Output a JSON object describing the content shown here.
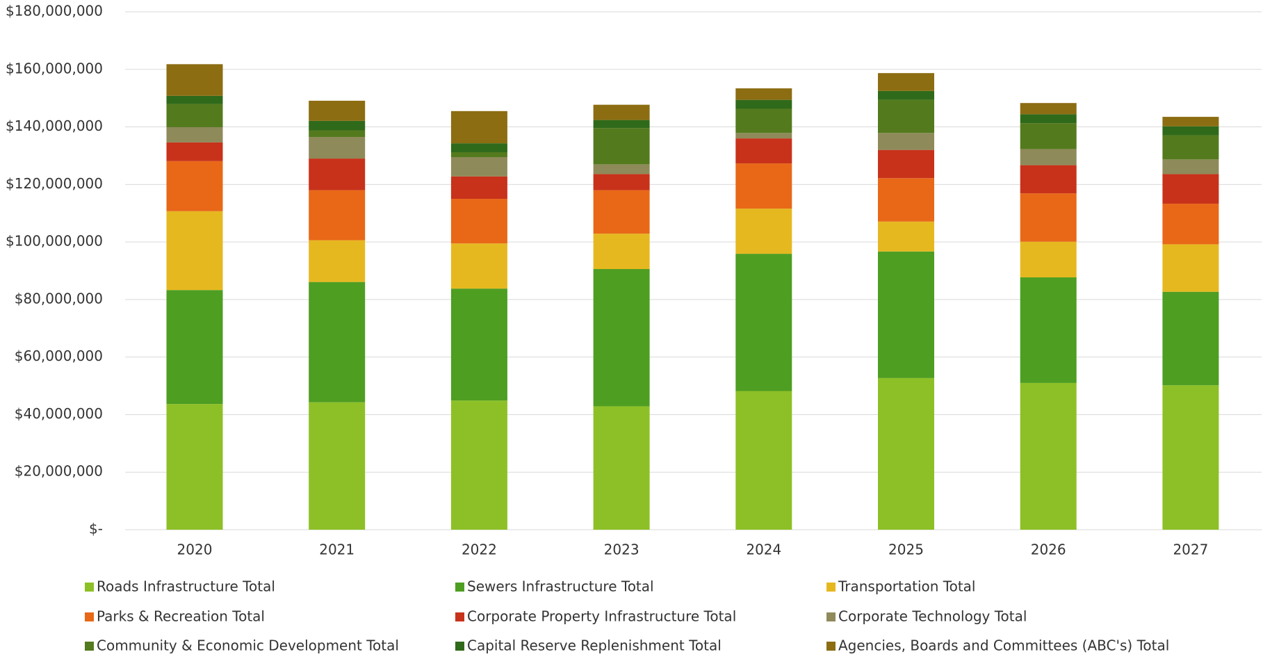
{
  "chart_data": {
    "type": "stacked_bar",
    "categories": [
      "2020",
      "2021",
      "2022",
      "2023",
      "2024",
      "2025",
      "2026",
      "2027"
    ],
    "series": [
      {
        "name": "Roads Infrastructure Total",
        "color": "#8dc026",
        "values": [
          43700000,
          44300000,
          44900000,
          42900000,
          48200000,
          52700000,
          51000000,
          50200000
        ]
      },
      {
        "name": "Sewers Infrastructure Total",
        "color": "#4e9e22",
        "values": [
          39600000,
          41800000,
          38900000,
          47700000,
          47700000,
          44000000,
          36700000,
          32500000
        ]
      },
      {
        "name": "Transportation Total",
        "color": "#e6b820",
        "values": [
          27400000,
          14500000,
          15700000,
          12300000,
          15700000,
          10400000,
          12400000,
          16500000
        ]
      },
      {
        "name": "Parks & Recreation Total",
        "color": "#e86818",
        "values": [
          17400000,
          17400000,
          15500000,
          15100000,
          15700000,
          15100000,
          16800000,
          14100000
        ]
      },
      {
        "name": "Corporate Property Infrastructure Total",
        "color": "#c8321a",
        "values": [
          6500000,
          11000000,
          7800000,
          5600000,
          8700000,
          9800000,
          9800000,
          10300000
        ]
      },
      {
        "name": "Corporate Technology Total",
        "color": "#8f8a5a",
        "values": [
          5300000,
          7500000,
          6700000,
          3400000,
          1900000,
          5900000,
          5600000,
          5100000
        ]
      },
      {
        "name": "Community & Economic Development Total",
        "color": "#547a1e",
        "values": [
          8100000,
          2300000,
          1700000,
          12600000,
          8400000,
          11500000,
          9000000,
          8400000
        ]
      },
      {
        "name": "Capital Reserve Replenishment Total",
        "color": "#2f6a1a",
        "values": [
          2800000,
          3300000,
          3100000,
          2800000,
          3100000,
          3100000,
          3100000,
          3100000
        ]
      },
      {
        "name": "Agencies, Boards and Committees (ABC's) Total",
        "color": "#8c6d12",
        "values": [
          11000000,
          7000000,
          11200000,
          5300000,
          4000000,
          6200000,
          3900000,
          3300000
        ]
      }
    ],
    "ylim": [
      0,
      180000000
    ],
    "yticks": [
      {
        "value": 0,
        "label": "$-"
      },
      {
        "value": 20000000,
        "label": "$20,000,000"
      },
      {
        "value": 40000000,
        "label": "$40,000,000"
      },
      {
        "value": 60000000,
        "label": "$60,000,000"
      },
      {
        "value": 80000000,
        "label": "$80,000,000"
      },
      {
        "value": 100000000,
        "label": "$100,000,000"
      },
      {
        "value": 120000000,
        "label": "$120,000,000"
      },
      {
        "value": 140000000,
        "label": "$140,000,000"
      },
      {
        "value": 160000000,
        "label": "$160,000,000"
      },
      {
        "value": 180000000,
        "label": "$180,000,000"
      }
    ],
    "grid": true,
    "legend": "bottom"
  }
}
